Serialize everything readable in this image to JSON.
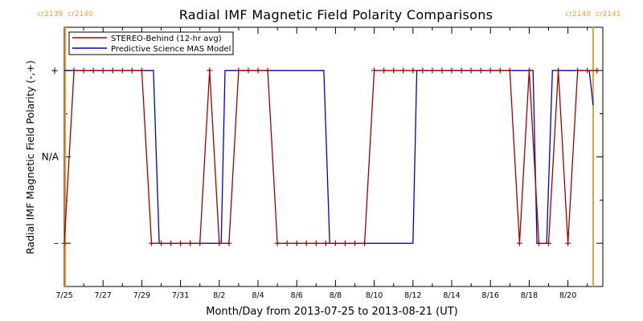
{
  "chart_data": {
    "type": "line",
    "title": "Radial IMF Magnetic Field Polarity Comparisons",
    "xlabel": "Month/Day from 2013-07-25 to 2013-08-21 (UT)",
    "ylabel": "Radial IMF Magnetic Field Polarity (-,+)",
    "x_unit": "days",
    "xlim": [
      0,
      27.8
    ],
    "ylim": [
      -1.5,
      1.5
    ],
    "x_ticks": [
      {
        "x": 0,
        "label": "7/25"
      },
      {
        "x": 2,
        "label": "7/27"
      },
      {
        "x": 4,
        "label": "7/29"
      },
      {
        "x": 6,
        "label": "7/31"
      },
      {
        "x": 8,
        "label": "8/2"
      },
      {
        "x": 10,
        "label": "8/4"
      },
      {
        "x": 12,
        "label": "8/6"
      },
      {
        "x": 14,
        "label": "8/8"
      },
      {
        "x": 16,
        "label": "8/10"
      },
      {
        "x": 18,
        "label": "8/12"
      },
      {
        "x": 20,
        "label": "8/14"
      },
      {
        "x": 22,
        "label": "8/16"
      },
      {
        "x": 24,
        "label": "8/18"
      },
      {
        "x": 26,
        "label": "8/20"
      }
    ],
    "y_ticks": [
      {
        "y": 1,
        "label": "+"
      },
      {
        "y": 0,
        "label": "N/A"
      },
      {
        "y": -1,
        "label": "–"
      }
    ],
    "carrington_markers": [
      {
        "x": 0.05,
        "left_label": "cr2139",
        "right_label": "cr2140"
      },
      {
        "x": 27.3,
        "left_label": "cr2140",
        "right_label": "cr2141"
      }
    ],
    "legend_position": "top-left",
    "series": [
      {
        "name": "STEREO-Behind (12-hr avg)",
        "color": "#a30000",
        "marker": "plus",
        "x": [
          0,
          0.5,
          1,
          1.5,
          2,
          2.5,
          3,
          3.5,
          4,
          4.5,
          5,
          5.5,
          6,
          6.5,
          7,
          7.5,
          8,
          8.5,
          9,
          9.5,
          10,
          10.5,
          11,
          11.5,
          12,
          12.5,
          13,
          13.5,
          14,
          14.5,
          15,
          15.5,
          16,
          16.5,
          17,
          17.5,
          18,
          18.5,
          19,
          19.5,
          20,
          20.5,
          21,
          21.5,
          22,
          22.5,
          23,
          23.5,
          24,
          24.5,
          25,
          25.5,
          26,
          26.5,
          27,
          27.5
        ],
        "y": [
          -1,
          1,
          1,
          1,
          1,
          1,
          1,
          1,
          1,
          -1,
          -1,
          -1,
          -1,
          -1,
          -1,
          1,
          -1,
          -1,
          1,
          1,
          1,
          1,
          -1,
          -1,
          -1,
          -1,
          -1,
          -1,
          -1,
          -1,
          -1,
          -1,
          1,
          1,
          1,
          1,
          1,
          1,
          1,
          1,
          1,
          1,
          1,
          1,
          1,
          1,
          1,
          -1,
          1,
          -1,
          -1,
          1,
          -1,
          1,
          1,
          1
        ]
      },
      {
        "name": "Predictive Science MAS Model",
        "color": "#0000c8",
        "marker": "none",
        "x": [
          0,
          4.6,
          4.9,
          8.1,
          8.3,
          13.4,
          13.7,
          18.0,
          18.2,
          24.2,
          24.4,
          24.9,
          25.2,
          27.1,
          27.3
        ],
        "y": [
          1,
          1,
          -1,
          -1,
          1,
          1,
          -1,
          -1,
          1,
          1,
          -1,
          -1,
          1,
          1,
          0.6
        ]
      }
    ]
  }
}
